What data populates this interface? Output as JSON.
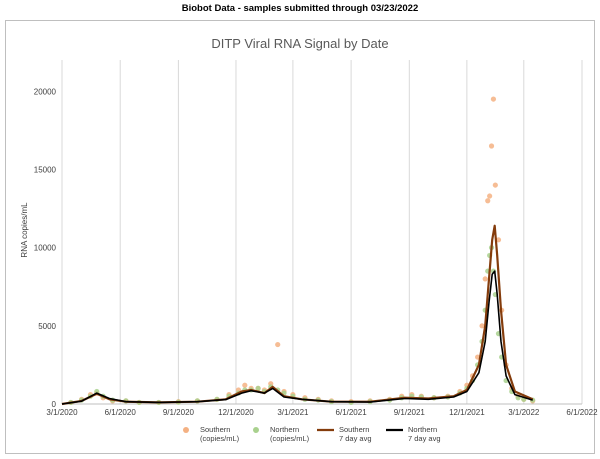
{
  "banner": "Biobot Data - samples submitted through 03/23/2022",
  "chart_data": {
    "type": "scatter",
    "title": "DITP Viral RNA Signal by Date",
    "xlabel": "",
    "ylabel": "RNA copies/mL",
    "xlim": [
      "2020-03-01",
      "2022-06-01"
    ],
    "ylim": [
      0,
      22000
    ],
    "x_ticks": [
      "3/1/2020",
      "6/1/2020",
      "9/1/2020",
      "12/1/2020",
      "3/1/2021",
      "6/1/2021",
      "9/1/2021",
      "12/1/2021",
      "3/1/2022",
      "6/1/2022"
    ],
    "y_ticks": [
      0,
      5000,
      10000,
      15000,
      20000
    ],
    "grid": "vertical",
    "legend_position": "bottom",
    "colors": {
      "southern": "#f4b183",
      "northern": "#a9d18e",
      "southern_avg": "#843c0c",
      "northern_avg": "#000000"
    },
    "legend": [
      {
        "key": "southern",
        "line1": "Southern",
        "line2": "(copies/mL)"
      },
      {
        "key": "northern",
        "line1": "Northern",
        "line2": "(copies/mL)"
      },
      {
        "key": "southern_avg",
        "line1": "Southern",
        "line2": "7 day avg"
      },
      {
        "key": "northern_avg",
        "line1": "Northern",
        "line2": "7 day avg"
      }
    ],
    "series": [
      {
        "name": "Southern (copies/mL)",
        "kind": "points",
        "key": "southern",
        "x": [
          "2020-03-15",
          "2020-04-01",
          "2020-04-15",
          "2020-04-25",
          "2020-05-05",
          "2020-05-20",
          "2020-06-10",
          "2020-07-01",
          "2020-08-01",
          "2020-09-01",
          "2020-10-01",
          "2020-11-01",
          "2020-11-20",
          "2020-12-05",
          "2020-12-15",
          "2020-12-25",
          "2021-01-05",
          "2021-01-15",
          "2021-01-25",
          "2021-02-05",
          "2021-02-15",
          "2021-03-01",
          "2021-03-20",
          "2021-04-10",
          "2021-05-01",
          "2021-06-01",
          "2021-07-01",
          "2021-08-01",
          "2021-08-20",
          "2021-09-05",
          "2021-09-20",
          "2021-10-10",
          "2021-11-01",
          "2021-11-20",
          "2021-12-01",
          "2021-12-10",
          "2021-12-18",
          "2021-12-25",
          "2021-12-30",
          "2022-01-03",
          "2022-01-06",
          "2022-01-09",
          "2022-01-12",
          "2022-01-15",
          "2022-01-20",
          "2022-01-25",
          "2022-02-01",
          "2022-02-10",
          "2022-02-20",
          "2022-03-01",
          "2022-03-15"
        ],
        "y": [
          100,
          300,
          600,
          700,
          400,
          200,
          200,
          100,
          100,
          150,
          200,
          300,
          600,
          900,
          1200,
          1000,
          1000,
          900,
          1300,
          3800,
          800,
          600,
          400,
          300,
          200,
          150,
          200,
          300,
          500,
          600,
          500,
          400,
          500,
          800,
          1200,
          1800,
          3000,
          5000,
          8000,
          13000,
          13300,
          16500,
          19500,
          14000,
          10500,
          6000,
          2500,
          1000,
          500,
          300,
          200
        ]
      },
      {
        "name": "Northern (copies/mL)",
        "kind": "points",
        "key": "northern",
        "x": [
          "2020-03-15",
          "2020-04-01",
          "2020-04-15",
          "2020-04-25",
          "2020-05-05",
          "2020-05-20",
          "2020-06-10",
          "2020-07-01",
          "2020-08-01",
          "2020-09-01",
          "2020-10-01",
          "2020-11-01",
          "2020-11-20",
          "2020-12-05",
          "2020-12-15",
          "2020-12-25",
          "2021-01-05",
          "2021-01-15",
          "2021-01-25",
          "2021-02-05",
          "2021-02-15",
          "2021-03-01",
          "2021-03-20",
          "2021-04-10",
          "2021-05-01",
          "2021-06-01",
          "2021-07-01",
          "2021-08-01",
          "2021-08-20",
          "2021-09-05",
          "2021-09-20",
          "2021-10-10",
          "2021-11-01",
          "2021-11-20",
          "2021-12-01",
          "2021-12-10",
          "2021-12-18",
          "2021-12-25",
          "2021-12-30",
          "2022-01-03",
          "2022-01-06",
          "2022-01-09",
          "2022-01-12",
          "2022-01-15",
          "2022-01-20",
          "2022-01-25",
          "2022-02-01",
          "2022-02-10",
          "2022-02-20",
          "2022-03-01",
          "2022-03-15"
        ],
        "y": [
          100,
          250,
          500,
          800,
          500,
          250,
          200,
          100,
          100,
          120,
          200,
          300,
          500,
          700,
          900,
          900,
          1000,
          800,
          1100,
          900,
          700,
          500,
          300,
          250,
          150,
          100,
          150,
          250,
          400,
          500,
          450,
          400,
          450,
          700,
          1000,
          1500,
          2500,
          4000,
          6000,
          8500,
          9500,
          10000,
          8500,
          7000,
          4500,
          3000,
          1500,
          800,
          400,
          300,
          250
        ]
      },
      {
        "name": "Southern 7 day avg",
        "kind": "line",
        "key": "southern_avg",
        "x": [
          "2020-03-01",
          "2020-04-01",
          "2020-04-25",
          "2020-05-15",
          "2020-06-10",
          "2020-08-01",
          "2020-10-01",
          "2020-11-15",
          "2020-12-10",
          "2020-12-25",
          "2021-01-15",
          "2021-01-28",
          "2021-02-15",
          "2021-03-15",
          "2021-05-01",
          "2021-07-01",
          "2021-08-25",
          "2021-10-01",
          "2021-11-10",
          "2021-12-01",
          "2021-12-20",
          "2021-12-30",
          "2022-01-05",
          "2022-01-10",
          "2022-01-14",
          "2022-01-18",
          "2022-01-24",
          "2022-02-01",
          "2022-02-15",
          "2022-03-15"
        ],
        "y": [
          0,
          200,
          650,
          300,
          150,
          100,
          150,
          300,
          800,
          900,
          700,
          1100,
          500,
          300,
          150,
          150,
          400,
          350,
          500,
          900,
          2500,
          5000,
          8000,
          10500,
          11400,
          9500,
          6000,
          2500,
          800,
          300
        ]
      },
      {
        "name": "Northern 7 day avg",
        "kind": "line",
        "key": "northern_avg",
        "x": [
          "2020-03-01",
          "2020-04-01",
          "2020-04-25",
          "2020-05-15",
          "2020-06-10",
          "2020-08-01",
          "2020-10-01",
          "2020-11-15",
          "2020-12-10",
          "2020-12-25",
          "2021-01-15",
          "2021-01-28",
          "2021-02-15",
          "2021-03-15",
          "2021-05-01",
          "2021-07-01",
          "2021-08-25",
          "2021-10-01",
          "2021-11-10",
          "2021-12-01",
          "2021-12-20",
          "2021-12-30",
          "2022-01-05",
          "2022-01-10",
          "2022-01-14",
          "2022-01-18",
          "2022-01-24",
          "2022-02-01",
          "2022-02-15",
          "2022-03-15"
        ],
        "y": [
          0,
          180,
          700,
          350,
          150,
          100,
          150,
          280,
          700,
          850,
          700,
          1000,
          450,
          300,
          150,
          120,
          350,
          300,
          450,
          800,
          2000,
          4000,
          6500,
          8300,
          8500,
          7000,
          4000,
          1800,
          600,
          250
        ]
      }
    ]
  }
}
